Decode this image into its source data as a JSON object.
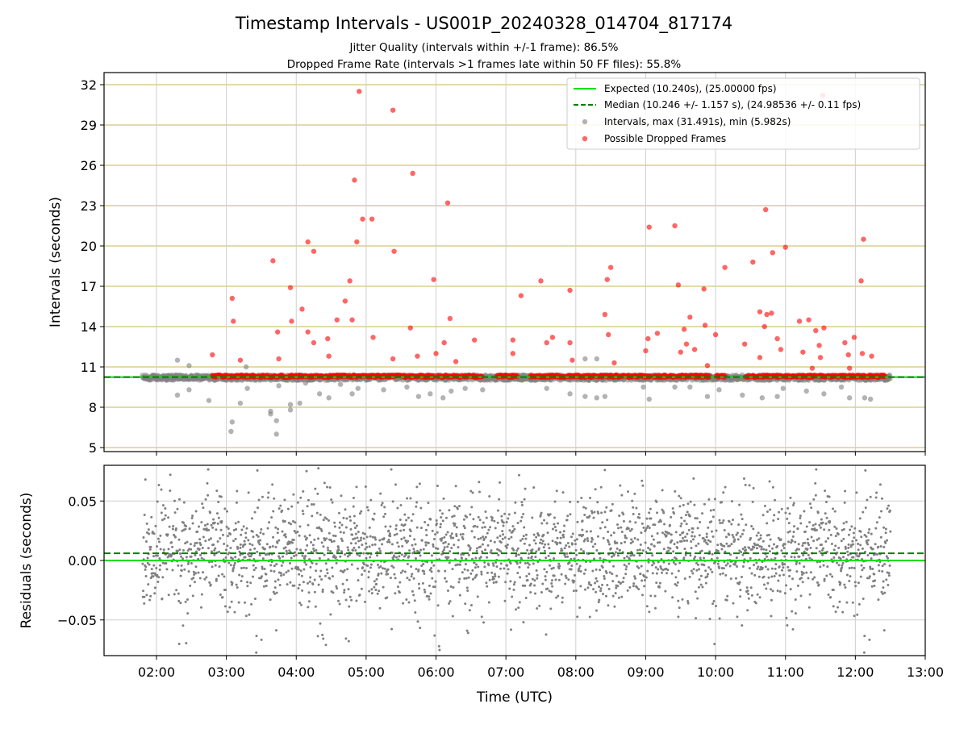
{
  "title": "Timestamp Intervals - US001P_20240328_014704_817174",
  "subtitle1": "Jitter Quality (intervals within +/-1 frame): 86.5%",
  "subtitle2": "Dropped Frame Rate (intervals >1 frames late within 50 FF files): 55.8%",
  "colors": {
    "expected": "#00e000",
    "median": "#008000",
    "intervals": "#808080",
    "dropped": "#ff0000",
    "hgrid_top": "#d4c37a",
    "grid": "#cfcfcf"
  },
  "chart_data": [
    {
      "type": "scatter",
      "panel": "intervals",
      "ylabel": "Intervals (seconds)",
      "xlim": [
        "01:15",
        "13:00"
      ],
      "ylim": [
        4.7,
        32.9
      ],
      "yticks": [
        5,
        8,
        11,
        14,
        17,
        20,
        23,
        26,
        29,
        32
      ],
      "grid": true,
      "legend_position": "top-right",
      "legend": [
        "Expected (10.240s), (25.00000 fps)",
        "Median (10.246 +/- 1.157 s), (24.98536 +/- 0.11 fps)",
        "Intervals, max (31.491s), min (5.982s)",
        "Possible Dropped Frames"
      ],
      "expected_line": 10.24,
      "median_line": 10.246,
      "max_interval": 31.491,
      "min_interval": 5.982,
      "x_range_data": [
        "01:48",
        "12:30"
      ],
      "dropped_frames": [
        {
          "x": "02:48",
          "y": 11.9
        },
        {
          "x": "03:05",
          "y": 16.1
        },
        {
          "x": "03:06",
          "y": 14.4
        },
        {
          "x": "03:12",
          "y": 11.5
        },
        {
          "x": "03:40",
          "y": 18.9
        },
        {
          "x": "03:44",
          "y": 13.6
        },
        {
          "x": "03:45",
          "y": 11.6
        },
        {
          "x": "03:55",
          "y": 16.9
        },
        {
          "x": "03:56",
          "y": 14.4
        },
        {
          "x": "04:05",
          "y": 15.3
        },
        {
          "x": "04:10",
          "y": 20.3
        },
        {
          "x": "04:10",
          "y": 13.6
        },
        {
          "x": "04:15",
          "y": 19.6
        },
        {
          "x": "04:15",
          "y": 12.8
        },
        {
          "x": "04:27",
          "y": 13.1
        },
        {
          "x": "04:28",
          "y": 11.8
        },
        {
          "x": "04:35",
          "y": 14.5
        },
        {
          "x": "04:42",
          "y": 15.9
        },
        {
          "x": "04:46",
          "y": 17.4
        },
        {
          "x": "04:48",
          "y": 14.5
        },
        {
          "x": "04:50",
          "y": 24.9
        },
        {
          "x": "04:52",
          "y": 20.3
        },
        {
          "x": "04:54",
          "y": 31.5
        },
        {
          "x": "04:57",
          "y": 22.0
        },
        {
          "x": "05:05",
          "y": 22.0
        },
        {
          "x": "05:06",
          "y": 13.2
        },
        {
          "x": "05:23",
          "y": 30.1
        },
        {
          "x": "05:24",
          "y": 19.6
        },
        {
          "x": "05:23",
          "y": 11.6
        },
        {
          "x": "05:38",
          "y": 13.9
        },
        {
          "x": "05:40",
          "y": 25.4
        },
        {
          "x": "05:44",
          "y": 11.8
        },
        {
          "x": "05:58",
          "y": 17.5
        },
        {
          "x": "06:00",
          "y": 12.0
        },
        {
          "x": "06:07",
          "y": 12.8
        },
        {
          "x": "06:10",
          "y": 23.2
        },
        {
          "x": "06:12",
          "y": 14.6
        },
        {
          "x": "06:17",
          "y": 11.4
        },
        {
          "x": "06:33",
          "y": 13.0
        },
        {
          "x": "07:06",
          "y": 13.0
        },
        {
          "x": "07:06",
          "y": 12.0
        },
        {
          "x": "07:13",
          "y": 16.3
        },
        {
          "x": "07:30",
          "y": 17.4
        },
        {
          "x": "07:35",
          "y": 12.8
        },
        {
          "x": "07:40",
          "y": 13.2
        },
        {
          "x": "07:55",
          "y": 16.7
        },
        {
          "x": "07:55",
          "y": 12.8
        },
        {
          "x": "07:57",
          "y": 11.5
        },
        {
          "x": "08:25",
          "y": 14.9
        },
        {
          "x": "08:27",
          "y": 17.5
        },
        {
          "x": "08:28",
          "y": 13.4
        },
        {
          "x": "08:30",
          "y": 18.4
        },
        {
          "x": "08:33",
          "y": 11.3
        },
        {
          "x": "09:00",
          "y": 12.2
        },
        {
          "x": "09:03",
          "y": 21.4
        },
        {
          "x": "09:02",
          "y": 13.1
        },
        {
          "x": "09:10",
          "y": 13.5
        },
        {
          "x": "09:25",
          "y": 21.5
        },
        {
          "x": "09:28",
          "y": 17.1
        },
        {
          "x": "09:30",
          "y": 12.1
        },
        {
          "x": "09:33",
          "y": 13.8
        },
        {
          "x": "09:35",
          "y": 12.7
        },
        {
          "x": "09:38",
          "y": 14.7
        },
        {
          "x": "09:42",
          "y": 12.3
        },
        {
          "x": "09:50",
          "y": 16.8
        },
        {
          "x": "09:51",
          "y": 14.1
        },
        {
          "x": "09:53",
          "y": 11.1
        },
        {
          "x": "10:00",
          "y": 13.4
        },
        {
          "x": "10:08",
          "y": 18.4
        },
        {
          "x": "10:25",
          "y": 12.7
        },
        {
          "x": "10:32",
          "y": 18.8
        },
        {
          "x": "10:38",
          "y": 15.1
        },
        {
          "x": "10:38",
          "y": 11.7
        },
        {
          "x": "10:43",
          "y": 22.7
        },
        {
          "x": "10:42",
          "y": 14.0
        },
        {
          "x": "10:44",
          "y": 14.9
        },
        {
          "x": "10:49",
          "y": 19.5
        },
        {
          "x": "10:48",
          "y": 15.0
        },
        {
          "x": "10:53",
          "y": 13.1
        },
        {
          "x": "10:56",
          "y": 12.3
        },
        {
          "x": "11:00",
          "y": 19.9
        },
        {
          "x": "11:12",
          "y": 14.4
        },
        {
          "x": "11:15",
          "y": 12.1
        },
        {
          "x": "11:20",
          "y": 14.5
        },
        {
          "x": "11:23",
          "y": 10.9
        },
        {
          "x": "11:26",
          "y": 13.7
        },
        {
          "x": "11:29",
          "y": 12.6
        },
        {
          "x": "11:30",
          "y": 11.7
        },
        {
          "x": "11:32",
          "y": 31.2
        },
        {
          "x": "11:33",
          "y": 13.9
        },
        {
          "x": "11:51",
          "y": 12.8
        },
        {
          "x": "11:54",
          "y": 11.9
        },
        {
          "x": "11:55",
          "y": 10.9
        },
        {
          "x": "11:59",
          "y": 13.2
        },
        {
          "x": "12:05",
          "y": 17.4
        },
        {
          "x": "12:06",
          "y": 12.0
        },
        {
          "x": "12:07",
          "y": 20.5
        },
        {
          "x": "12:14",
          "y": 11.8
        }
      ],
      "low_intervals": [
        {
          "x": "02:18",
          "y": 11.5
        },
        {
          "x": "02:18",
          "y": 8.9
        },
        {
          "x": "02:28",
          "y": 11.1
        },
        {
          "x": "02:28",
          "y": 9.3
        },
        {
          "x": "02:45",
          "y": 8.5
        },
        {
          "x": "03:05",
          "y": 6.9
        },
        {
          "x": "03:04",
          "y": 6.2
        },
        {
          "x": "03:12",
          "y": 8.3
        },
        {
          "x": "03:18",
          "y": 9.4
        },
        {
          "x": "03:17",
          "y": 11.0
        },
        {
          "x": "03:38",
          "y": 7.7
        },
        {
          "x": "03:38",
          "y": 7.5
        },
        {
          "x": "03:43",
          "y": 7.0
        },
        {
          "x": "03:43",
          "y": 6.0
        },
        {
          "x": "03:45",
          "y": 9.6
        },
        {
          "x": "03:55",
          "y": 8.2
        },
        {
          "x": "03:55",
          "y": 7.8
        },
        {
          "x": "04:03",
          "y": 8.3
        },
        {
          "x": "04:08",
          "y": 9.8
        },
        {
          "x": "04:20",
          "y": 9.0
        },
        {
          "x": "04:28",
          "y": 8.7
        },
        {
          "x": "04:38",
          "y": 9.7
        },
        {
          "x": "04:48",
          "y": 9.0
        },
        {
          "x": "04:53",
          "y": 9.4
        },
        {
          "x": "05:15",
          "y": 9.3
        },
        {
          "x": "05:35",
          "y": 9.5
        },
        {
          "x": "05:45",
          "y": 8.8
        },
        {
          "x": "05:55",
          "y": 9.0
        },
        {
          "x": "06:06",
          "y": 8.7
        },
        {
          "x": "06:13",
          "y": 9.2
        },
        {
          "x": "06:25",
          "y": 9.4
        },
        {
          "x": "06:40",
          "y": 9.3
        },
        {
          "x": "07:35",
          "y": 9.4
        },
        {
          "x": "07:55",
          "y": 9.0
        },
        {
          "x": "08:08",
          "y": 8.8
        },
        {
          "x": "08:18",
          "y": 8.7
        },
        {
          "x": "08:25",
          "y": 8.8
        },
        {
          "x": "08:08",
          "y": 11.6
        },
        {
          "x": "08:18",
          "y": 11.6
        },
        {
          "x": "08:58",
          "y": 9.5
        },
        {
          "x": "09:03",
          "y": 8.6
        },
        {
          "x": "09:25",
          "y": 9.5
        },
        {
          "x": "09:38",
          "y": 9.5
        },
        {
          "x": "09:53",
          "y": 8.8
        },
        {
          "x": "10:03",
          "y": 9.3
        },
        {
          "x": "10:23",
          "y": 8.9
        },
        {
          "x": "10:40",
          "y": 8.7
        },
        {
          "x": "10:53",
          "y": 8.8
        },
        {
          "x": "10:58",
          "y": 9.4
        },
        {
          "x": "11:18",
          "y": 9.2
        },
        {
          "x": "11:33",
          "y": 9.0
        },
        {
          "x": "11:48",
          "y": 9.5
        },
        {
          "x": "11:55",
          "y": 8.7
        },
        {
          "x": "12:08",
          "y": 8.7
        },
        {
          "x": "12:13",
          "y": 8.6
        }
      ],
      "dense_band": {
        "y_low": 10.0,
        "y_high": 10.4
      }
    },
    {
      "type": "scatter",
      "panel": "residuals",
      "ylabel": "Residuals (seconds)",
      "xlabel": "Time (UTC)",
      "xlim": [
        "01:15",
        "13:00"
      ],
      "ylim": [
        -0.08,
        0.08
      ],
      "yticks": [
        0.05,
        0.0,
        -0.05
      ],
      "ytick_labels": [
        "0.05",
        "0.00",
        "−0.05"
      ],
      "xtick_labels": [
        "02:00",
        "03:00",
        "04:00",
        "05:00",
        "06:00",
        "07:00",
        "08:00",
        "09:00",
        "10:00",
        "11:00",
        "12:00",
        "13:00"
      ],
      "expected_line": 0.0,
      "median_line": 0.006,
      "residual_spread": {
        "typical_low": -0.03,
        "typical_high": 0.045,
        "outlier_low": -0.078,
        "outlier_high": 0.078
      }
    }
  ]
}
